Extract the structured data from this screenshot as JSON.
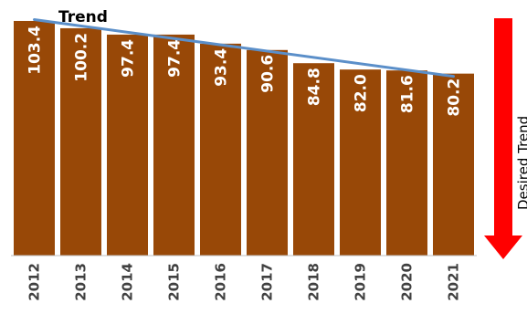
{
  "chart_data": {
    "type": "bar",
    "categories": [
      "2012",
      "2013",
      "2014",
      "2015",
      "2016",
      "2017",
      "2018",
      "2019",
      "2020",
      "2021"
    ],
    "values": [
      103.4,
      100.2,
      97.4,
      97.4,
      93.4,
      90.6,
      84.8,
      82.0,
      81.6,
      80.2
    ],
    "value_labels": [
      "103.4",
      "100.2",
      "97.4",
      "97.4",
      "93.4",
      "90.6",
      "84.8",
      "82.0",
      "81.6",
      "80.2"
    ],
    "ylim": [
      0,
      105
    ],
    "bar_color": "#984807",
    "trend": {
      "label": "Trend",
      "color": "#5b8fc9",
      "from": 104,
      "to": 79
    },
    "desired_trend": {
      "label": "Desired Trend",
      "color": "#ff0000",
      "direction": "down"
    },
    "grid": false
  }
}
